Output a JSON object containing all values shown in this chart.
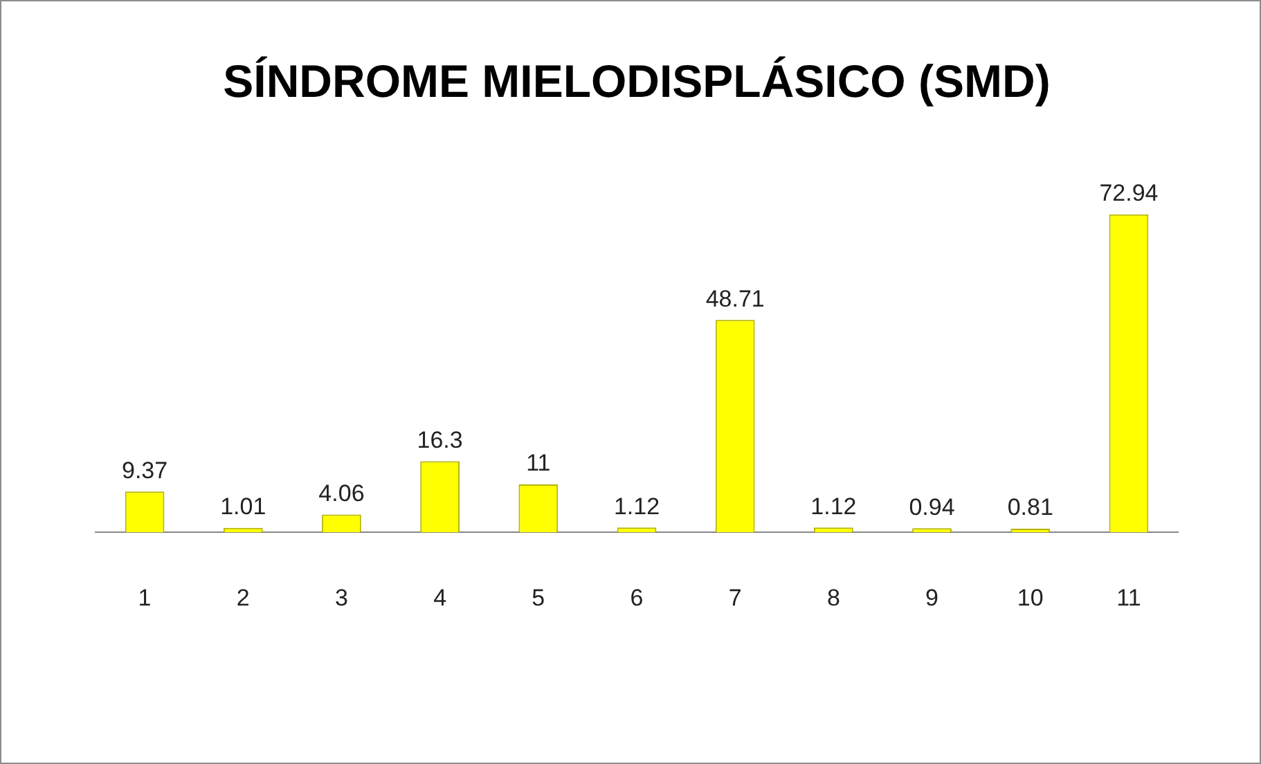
{
  "chart_data": {
    "type": "bar",
    "title": "SÍNDROME MIELODISPLÁSICO (SMD)",
    "categories": [
      "1",
      "2",
      "3",
      "4",
      "5",
      "6",
      "7",
      "8",
      "9",
      "10",
      "11"
    ],
    "values": [
      9.37,
      1.01,
      4.06,
      16.3,
      11,
      1.12,
      48.71,
      1.12,
      0.94,
      0.81,
      72.94
    ],
    "color": "#ffff00",
    "data_labels": true,
    "grid": false,
    "legend": false
  }
}
